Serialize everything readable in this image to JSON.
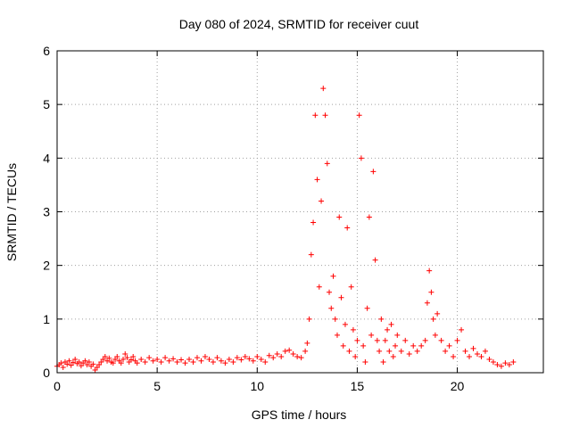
{
  "chart_data": {
    "type": "scatter",
    "title": "Day 080 of 2024, SRMTID for receiver cuut",
    "xlabel": "GPS time / hours",
    "ylabel": "SRMTID / TECUs",
    "xlim": [
      0,
      24.3
    ],
    "ylim": [
      0,
      6
    ],
    "xticks": [
      0,
      5,
      10,
      15,
      20
    ],
    "xtick_labels": [
      "0",
      "5",
      "10",
      "15",
      "20"
    ],
    "yticks": [
      0,
      1,
      2,
      3,
      4,
      5,
      6
    ],
    "ytick_labels": [
      "0",
      "1",
      "2",
      "3",
      "4",
      "5",
      "6"
    ],
    "grid": true,
    "marker": "+",
    "color": "#ff0000",
    "series": [
      {
        "name": "SRMTID",
        "points": [
          [
            0.0,
            0.12
          ],
          [
            0.1,
            0.15
          ],
          [
            0.2,
            0.18
          ],
          [
            0.3,
            0.1
          ],
          [
            0.4,
            0.2
          ],
          [
            0.5,
            0.16
          ],
          [
            0.6,
            0.22
          ],
          [
            0.7,
            0.14
          ],
          [
            0.8,
            0.19
          ],
          [
            0.9,
            0.25
          ],
          [
            1.0,
            0.17
          ],
          [
            1.1,
            0.2
          ],
          [
            1.2,
            0.13
          ],
          [
            1.3,
            0.18
          ],
          [
            1.4,
            0.22
          ],
          [
            1.5,
            0.15
          ],
          [
            1.6,
            0.2
          ],
          [
            1.7,
            0.12
          ],
          [
            1.8,
            0.16
          ],
          [
            1.9,
            0.05
          ],
          [
            2.0,
            0.1
          ],
          [
            2.1,
            0.15
          ],
          [
            2.2,
            0.2
          ],
          [
            2.3,
            0.25
          ],
          [
            2.4,
            0.3
          ],
          [
            2.5,
            0.22
          ],
          [
            2.6,
            0.27
          ],
          [
            2.7,
            0.2
          ],
          [
            2.8,
            0.18
          ],
          [
            2.9,
            0.25
          ],
          [
            3.0,
            0.3
          ],
          [
            3.1,
            0.22
          ],
          [
            3.2,
            0.18
          ],
          [
            3.3,
            0.25
          ],
          [
            3.4,
            0.35
          ],
          [
            3.5,
            0.28
          ],
          [
            3.6,
            0.2
          ],
          [
            3.7,
            0.24
          ],
          [
            3.8,
            0.3
          ],
          [
            3.9,
            0.22
          ],
          [
            4.0,
            0.18
          ],
          [
            4.2,
            0.25
          ],
          [
            4.4,
            0.2
          ],
          [
            4.6,
            0.28
          ],
          [
            4.8,
            0.22
          ],
          [
            5.0,
            0.25
          ],
          [
            5.2,
            0.2
          ],
          [
            5.4,
            0.28
          ],
          [
            5.6,
            0.22
          ],
          [
            5.8,
            0.26
          ],
          [
            6.0,
            0.2
          ],
          [
            6.2,
            0.24
          ],
          [
            6.4,
            0.18
          ],
          [
            6.6,
            0.25
          ],
          [
            6.8,
            0.2
          ],
          [
            7.0,
            0.28
          ],
          [
            7.2,
            0.22
          ],
          [
            7.4,
            0.3
          ],
          [
            7.6,
            0.25
          ],
          [
            7.8,
            0.2
          ],
          [
            8.0,
            0.28
          ],
          [
            8.2,
            0.22
          ],
          [
            8.4,
            0.18
          ],
          [
            8.6,
            0.25
          ],
          [
            8.8,
            0.2
          ],
          [
            9.0,
            0.28
          ],
          [
            9.2,
            0.24
          ],
          [
            9.4,
            0.3
          ],
          [
            9.6,
            0.26
          ],
          [
            9.8,
            0.22
          ],
          [
            10.0,
            0.3
          ],
          [
            10.2,
            0.25
          ],
          [
            10.4,
            0.2
          ],
          [
            10.6,
            0.32
          ],
          [
            10.8,
            0.28
          ],
          [
            11.0,
            0.35
          ],
          [
            11.2,
            0.3
          ],
          [
            11.4,
            0.4
          ],
          [
            11.6,
            0.42
          ],
          [
            11.8,
            0.35
          ],
          [
            12.0,
            0.3
          ],
          [
            12.2,
            0.28
          ],
          [
            12.4,
            0.4
          ],
          [
            12.5,
            0.55
          ],
          [
            12.6,
            1.0
          ],
          [
            12.7,
            2.2
          ],
          [
            12.8,
            2.8
          ],
          [
            12.9,
            4.8
          ],
          [
            13.0,
            3.6
          ],
          [
            13.1,
            1.6
          ],
          [
            13.2,
            3.2
          ],
          [
            13.3,
            5.3
          ],
          [
            13.4,
            4.8
          ],
          [
            13.5,
            3.9
          ],
          [
            13.6,
            1.5
          ],
          [
            13.7,
            1.2
          ],
          [
            13.8,
            1.8
          ],
          [
            13.9,
            1.0
          ],
          [
            14.0,
            0.7
          ],
          [
            14.1,
            2.9
          ],
          [
            14.2,
            1.4
          ],
          [
            14.3,
            0.5
          ],
          [
            14.4,
            0.9
          ],
          [
            14.5,
            2.7
          ],
          [
            14.6,
            0.4
          ],
          [
            14.7,
            1.6
          ],
          [
            14.8,
            0.8
          ],
          [
            14.9,
            0.3
          ],
          [
            15.0,
            0.6
          ],
          [
            15.1,
            4.8
          ],
          [
            15.2,
            4.0
          ],
          [
            15.3,
            0.5
          ],
          [
            15.4,
            0.2
          ],
          [
            15.5,
            1.2
          ],
          [
            15.6,
            2.9
          ],
          [
            15.7,
            0.7
          ],
          [
            15.8,
            3.75
          ],
          [
            15.9,
            2.1
          ],
          [
            16.0,
            0.6
          ],
          [
            16.1,
            0.4
          ],
          [
            16.2,
            1.0
          ],
          [
            16.3,
            0.2
          ],
          [
            16.4,
            0.6
          ],
          [
            16.5,
            0.8
          ],
          [
            16.6,
            0.4
          ],
          [
            16.7,
            0.9
          ],
          [
            16.8,
            0.3
          ],
          [
            16.9,
            0.5
          ],
          [
            17.0,
            0.7
          ],
          [
            17.2,
            0.4
          ],
          [
            17.4,
            0.6
          ],
          [
            17.6,
            0.35
          ],
          [
            17.8,
            0.5
          ],
          [
            18.0,
            0.4
          ],
          [
            18.2,
            0.5
          ],
          [
            18.4,
            0.6
          ],
          [
            18.5,
            1.3
          ],
          [
            18.6,
            1.9
          ],
          [
            18.7,
            1.5
          ],
          [
            18.8,
            1.0
          ],
          [
            18.9,
            0.7
          ],
          [
            19.0,
            1.1
          ],
          [
            19.2,
            0.6
          ],
          [
            19.4,
            0.4
          ],
          [
            19.6,
            0.5
          ],
          [
            19.8,
            0.3
          ],
          [
            20.0,
            0.6
          ],
          [
            20.2,
            0.8
          ],
          [
            20.4,
            0.4
          ],
          [
            20.6,
            0.3
          ],
          [
            20.8,
            0.45
          ],
          [
            21.0,
            0.35
          ],
          [
            21.2,
            0.3
          ],
          [
            21.4,
            0.4
          ],
          [
            21.6,
            0.25
          ],
          [
            21.8,
            0.2
          ],
          [
            22.0,
            0.15
          ],
          [
            22.2,
            0.12
          ],
          [
            22.4,
            0.18
          ],
          [
            22.6,
            0.15
          ],
          [
            22.8,
            0.2
          ]
        ]
      }
    ]
  }
}
